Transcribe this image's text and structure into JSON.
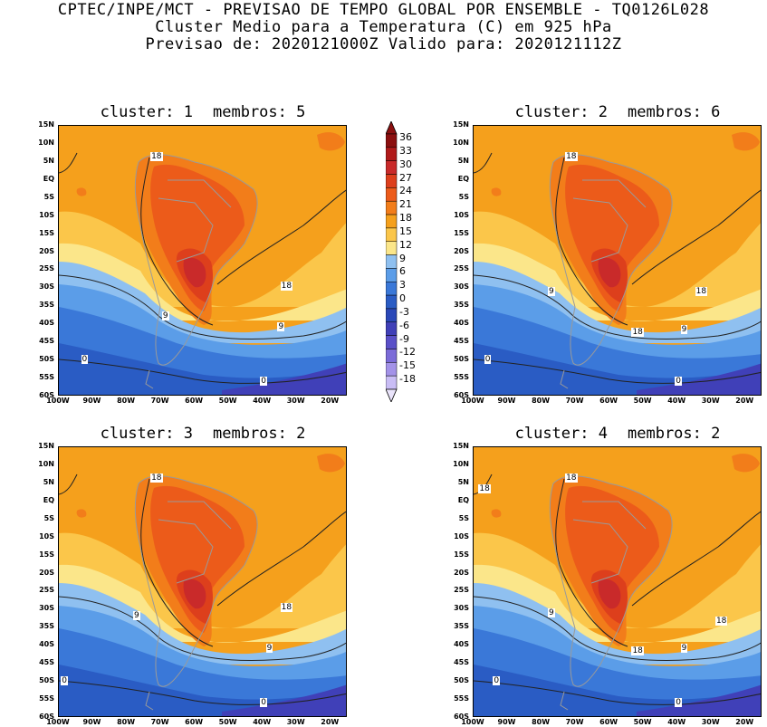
{
  "header": {
    "line1": "CPTEC/INPE/MCT - PREVISAO DE TEMPO GLOBAL POR ENSEMBLE - TQ0126L028",
    "line2": "Cluster Medio para a Temperatura (C) em 925 hPa",
    "line3": "Previsao de: 2020121000Z   Valido para: 2020121112Z"
  },
  "panels": [
    {
      "cluster_label": "cluster:",
      "cluster": "1",
      "members_label": "membros:",
      "members": "5"
    },
    {
      "cluster_label": "cluster:",
      "cluster": "2",
      "members_label": "membros:",
      "members": "6"
    },
    {
      "cluster_label": "cluster:",
      "cluster": "3",
      "members_label": "membros:",
      "members": "2"
    },
    {
      "cluster_label": "cluster:",
      "cluster": "4",
      "members_label": "membros:",
      "members": "2"
    }
  ],
  "lat_labels": [
    "15N",
    "10N",
    "5N",
    "EQ",
    "5S",
    "10S",
    "15S",
    "20S",
    "25S",
    "30S",
    "35S",
    "40S",
    "45S",
    "50S",
    "55S",
    "60S"
  ],
  "lon_labels": [
    "100W",
    "90W",
    "80W",
    "70W",
    "60W",
    "50W",
    "40W",
    "30W",
    "20W"
  ],
  "colorbar": {
    "levels": [
      "36",
      "33",
      "30",
      "27",
      "24",
      "21",
      "18",
      "15",
      "12",
      "9",
      "6",
      "3",
      "0",
      "-3",
      "-6",
      "-9",
      "-12",
      "-15",
      "-18"
    ],
    "colors": [
      "#8b0f0f",
      "#b01a1a",
      "#c92a2a",
      "#dd3f1c",
      "#ec5b1a",
      "#f27d1a",
      "#f5a01c",
      "#fbc64a",
      "#fbe68a",
      "#8fc0f0",
      "#5b9de8",
      "#3a78d8",
      "#2a5cc4",
      "#2a48b8",
      "#4040b8",
      "#5a50c8",
      "#7b6bd8",
      "#a392e8",
      "#c9bdf5"
    ]
  },
  "contour_labels": {
    "p1": [
      "18",
      "18",
      "9",
      "9",
      "0",
      "0"
    ],
    "p2": [
      "18",
      "18",
      "9",
      "18",
      "9",
      "0",
      "0"
    ],
    "p3": [
      "18",
      "18",
      "9",
      "9",
      "0",
      "0"
    ],
    "p4": [
      "18",
      "18",
      "18",
      "9",
      "18",
      "9",
      "0",
      "0"
    ]
  }
}
